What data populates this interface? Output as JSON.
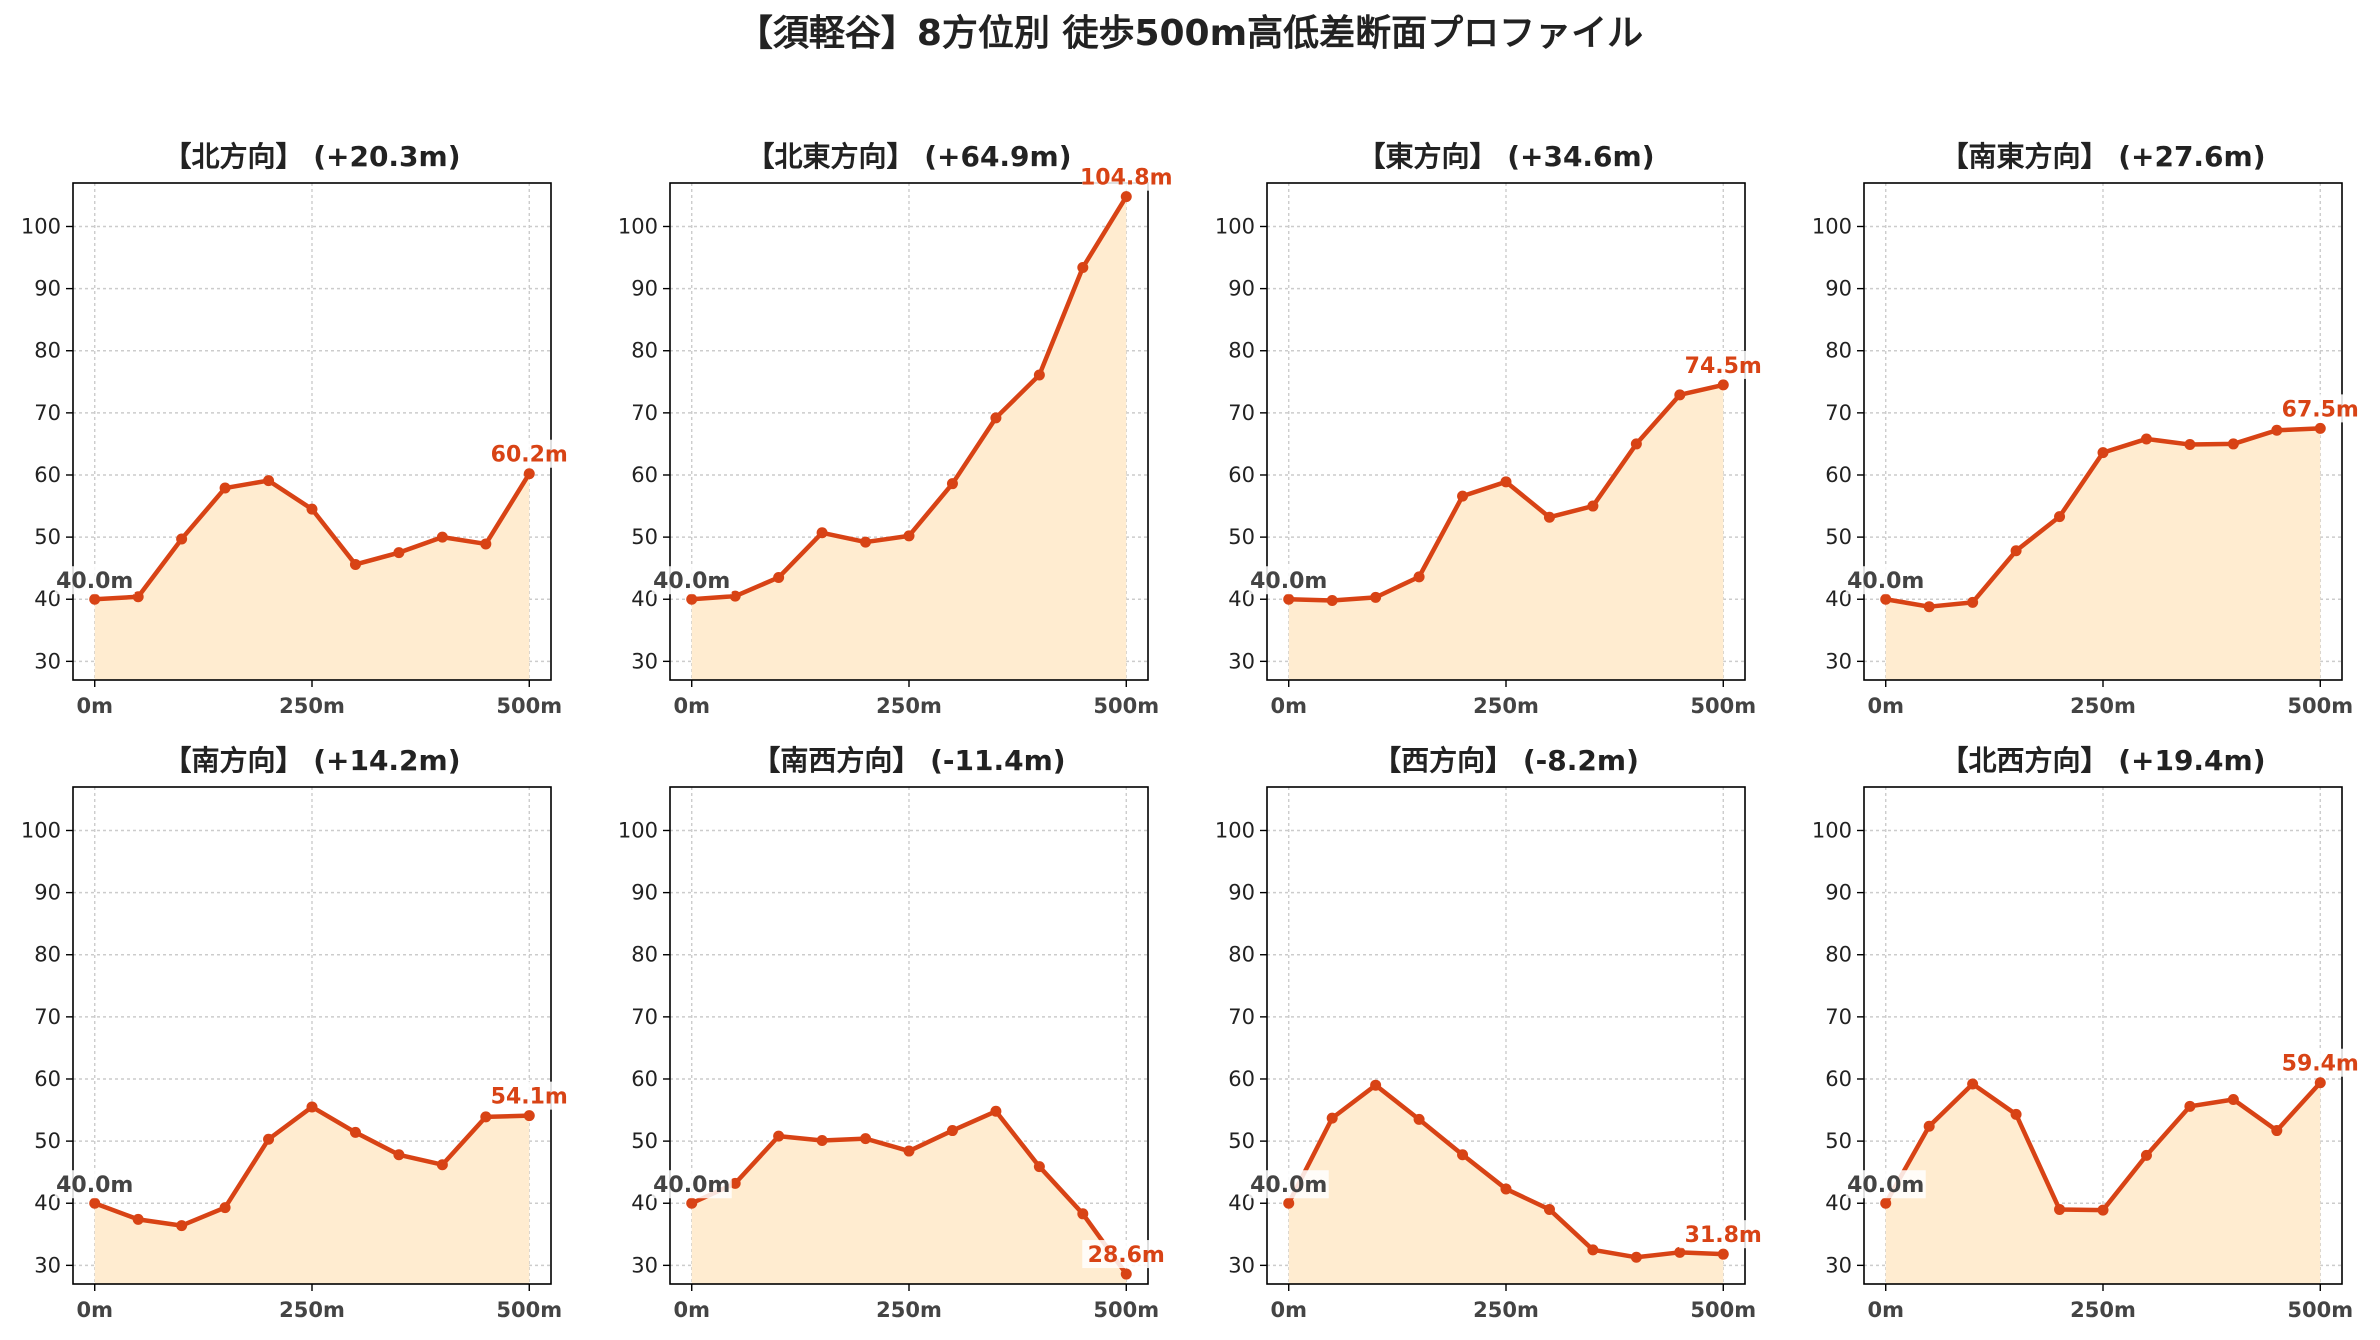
{
  "title": "【須軽谷】8方位別 徒歩500m高低差断面プロファイル",
  "colors": {
    "line": "#d84315",
    "fill": "#ffecd0",
    "grid": "#cccccc",
    "start_label": "#444444"
  },
  "chart_data": [
    {
      "type": "area",
      "title": "【北方向】 (+20.3m)",
      "start_label": "40.0m",
      "end_label": "60.2m",
      "x": [
        0,
        50,
        100,
        150,
        200,
        250,
        300,
        350,
        400,
        450,
        500
      ],
      "values": [
        40.0,
        40.4,
        49.7,
        57.9,
        59.1,
        54.5,
        45.6,
        47.5,
        50.0,
        48.9,
        60.2
      ],
      "ylim": [
        27,
        107
      ],
      "yticks": [
        30,
        40,
        50,
        60,
        70,
        80,
        90,
        100
      ],
      "xticks": [
        0,
        250,
        500
      ],
      "xtick_labels": [
        "0m",
        "250m",
        "500m"
      ],
      "grid": true
    },
    {
      "type": "area",
      "title": "【北東方向】 (+64.9m)",
      "start_label": "40.0m",
      "end_label": "104.8m",
      "x": [
        0,
        50,
        100,
        150,
        200,
        250,
        300,
        350,
        400,
        450,
        500
      ],
      "values": [
        40.0,
        40.5,
        43.5,
        50.7,
        49.2,
        50.2,
        58.6,
        69.2,
        76.1,
        93.4,
        104.8
      ],
      "ylim": [
        27,
        107
      ],
      "yticks": [
        30,
        40,
        50,
        60,
        70,
        80,
        90,
        100
      ],
      "xticks": [
        0,
        250,
        500
      ],
      "xtick_labels": [
        "0m",
        "250m",
        "500m"
      ],
      "grid": true
    },
    {
      "type": "area",
      "title": "【東方向】 (+34.6m)",
      "start_label": "40.0m",
      "end_label": "74.5m",
      "x": [
        0,
        50,
        100,
        150,
        200,
        250,
        300,
        350,
        400,
        450,
        500
      ],
      "values": [
        40.0,
        39.8,
        40.3,
        43.6,
        56.6,
        58.9,
        53.2,
        55.0,
        65.0,
        72.9,
        74.5
      ],
      "ylim": [
        27,
        107
      ],
      "yticks": [
        30,
        40,
        50,
        60,
        70,
        80,
        90,
        100
      ],
      "xticks": [
        0,
        250,
        500
      ],
      "xtick_labels": [
        "0m",
        "250m",
        "500m"
      ],
      "grid": true
    },
    {
      "type": "area",
      "title": "【南東方向】 (+27.6m)",
      "start_label": "40.0m",
      "end_label": "67.5m",
      "x": [
        0,
        50,
        100,
        150,
        200,
        250,
        300,
        350,
        400,
        450,
        500
      ],
      "values": [
        40.0,
        38.8,
        39.5,
        47.8,
        53.3,
        63.6,
        65.8,
        64.9,
        65.0,
        67.2,
        67.5
      ],
      "ylim": [
        27,
        107
      ],
      "yticks": [
        30,
        40,
        50,
        60,
        70,
        80,
        90,
        100
      ],
      "xticks": [
        0,
        250,
        500
      ],
      "xtick_labels": [
        "0m",
        "250m",
        "500m"
      ],
      "grid": true
    },
    {
      "type": "area",
      "title": "【南方向】 (+14.2m)",
      "start_label": "40.0m",
      "end_label": "54.1m",
      "x": [
        0,
        50,
        100,
        150,
        200,
        250,
        300,
        350,
        400,
        450,
        500
      ],
      "values": [
        40.0,
        37.4,
        36.4,
        39.3,
        50.3,
        55.5,
        51.4,
        47.8,
        46.2,
        53.9,
        54.1
      ],
      "ylim": [
        27,
        107
      ],
      "yticks": [
        30,
        40,
        50,
        60,
        70,
        80,
        90,
        100
      ],
      "xticks": [
        0,
        250,
        500
      ],
      "xtick_labels": [
        "0m",
        "250m",
        "500m"
      ],
      "grid": true
    },
    {
      "type": "area",
      "title": "【南西方向】 (-11.4m)",
      "start_label": "40.0m",
      "end_label": "28.6m",
      "x": [
        0,
        50,
        100,
        150,
        200,
        250,
        300,
        350,
        400,
        450,
        500
      ],
      "values": [
        40.0,
        43.2,
        50.8,
        50.1,
        50.4,
        48.4,
        51.7,
        54.8,
        45.9,
        38.3,
        28.6
      ],
      "ylim": [
        27,
        107
      ],
      "yticks": [
        30,
        40,
        50,
        60,
        70,
        80,
        90,
        100
      ],
      "xticks": [
        0,
        250,
        500
      ],
      "xtick_labels": [
        "0m",
        "250m",
        "500m"
      ],
      "grid": true
    },
    {
      "type": "area",
      "title": "【西方向】 (-8.2m)",
      "start_label": "40.0m",
      "end_label": "31.8m",
      "x": [
        0,
        50,
        100,
        150,
        200,
        250,
        300,
        350,
        400,
        450,
        500
      ],
      "values": [
        40.0,
        53.7,
        59.0,
        53.5,
        47.8,
        42.3,
        39.0,
        32.5,
        31.3,
        32.1,
        31.8
      ],
      "ylim": [
        27,
        107
      ],
      "yticks": [
        30,
        40,
        50,
        60,
        70,
        80,
        90,
        100
      ],
      "xticks": [
        0,
        250,
        500
      ],
      "xtick_labels": [
        "0m",
        "250m",
        "500m"
      ],
      "grid": true
    },
    {
      "type": "area",
      "title": "【北西方向】 (+19.4m)",
      "start_label": "40.0m",
      "end_label": "59.4m",
      "x": [
        0,
        50,
        100,
        150,
        200,
        250,
        300,
        350,
        400,
        450,
        500
      ],
      "values": [
        40.0,
        52.4,
        59.2,
        54.3,
        39.0,
        38.9,
        47.7,
        55.6,
        56.7,
        51.7,
        59.4
      ],
      "ylim": [
        27,
        107
      ],
      "yticks": [
        30,
        40,
        50,
        60,
        70,
        80,
        90,
        100
      ],
      "xticks": [
        0,
        250,
        500
      ],
      "xtick_labels": [
        "0m",
        "250m",
        "500m"
      ],
      "grid": true
    }
  ]
}
